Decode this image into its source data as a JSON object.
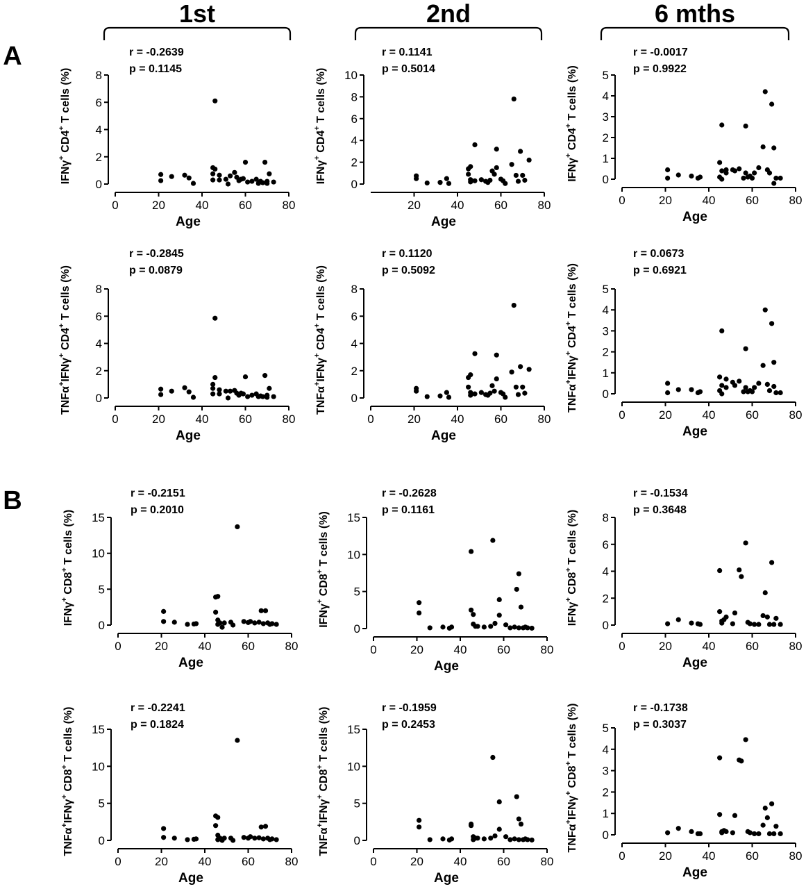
{
  "column_headers": [
    "1st",
    "2nd",
    "6 mths"
  ],
  "panel_letters": [
    "A",
    "B"
  ],
  "chart_data": [
    {
      "type": "scatter",
      "panel": "A",
      "column": "1st",
      "stat_r": "r = -0.2639",
      "stat_p": "p = 0.1145",
      "xlabel": "Age",
      "ylabel": "IFNγ+ CD4+ T cells (%)",
      "ylabel_parts": [
        [
          "IFNγ",
          ""
        ],
        [
          "+",
          "sup"
        ],
        [
          " CD4",
          ""
        ],
        [
          "+",
          "sup"
        ],
        [
          " T cells (%)",
          ""
        ]
      ],
      "xlim": [
        0,
        80
      ],
      "ylim": [
        0,
        8
      ],
      "xticks": [
        0,
        20,
        40,
        60,
        80
      ],
      "yticks": [
        0,
        2,
        4,
        6,
        8
      ],
      "x": [
        21,
        21,
        26,
        32,
        34,
        36,
        45,
        45,
        45,
        46,
        46,
        48,
        48,
        51,
        52,
        53,
        55,
        56,
        57,
        58,
        59,
        60,
        61,
        63,
        65,
        66,
        67,
        68,
        69,
        70,
        70,
        71,
        73
      ],
      "y": [
        0.7,
        0.25,
        0.55,
        0.65,
        0.45,
        0.05,
        1.2,
        0.75,
        0.3,
        6.1,
        1.1,
        0.65,
        0.3,
        0.35,
        0.0,
        0.6,
        0.85,
        0.5,
        0.25,
        0.35,
        0.4,
        1.6,
        0.15,
        0.2,
        0.35,
        0.05,
        0.2,
        0.1,
        1.6,
        0.2,
        0.05,
        0.75,
        0.15
      ]
    },
    {
      "type": "scatter",
      "panel": "A",
      "column": "2nd",
      "stat_r": "r = 0.1141",
      "stat_p": "p = 0.5014",
      "xlabel": "Age",
      "ylabel": "IFNγ+ CD4+ T cells (%)",
      "ylabel_parts": [
        [
          "IFNγ",
          ""
        ],
        [
          "+",
          "sup"
        ],
        [
          " CD4",
          ""
        ],
        [
          "+",
          "sup"
        ],
        [
          " T cells (%)",
          ""
        ]
      ],
      "xlim": [
        0,
        80
      ],
      "ylim": [
        0,
        10
      ],
      "xticks": [
        20,
        40,
        60,
        80
      ],
      "yticks": [
        0,
        2,
        4,
        6,
        8,
        10
      ],
      "x": [
        21,
        21,
        26,
        32,
        35,
        36,
        45,
        45,
        46,
        46,
        46,
        48,
        48,
        51,
        53,
        54,
        55,
        56,
        57,
        58,
        58,
        60,
        61,
        62,
        65,
        66,
        67,
        68,
        69,
        70,
        71,
        73
      ],
      "y": [
        0.75,
        0.5,
        0.1,
        0.15,
        0.5,
        0.05,
        1.4,
        0.9,
        1.6,
        0.4,
        0.2,
        3.6,
        0.3,
        0.4,
        0.25,
        0.15,
        0.35,
        1.2,
        0.9,
        3.2,
        1.5,
        0.45,
        0.3,
        0.05,
        1.8,
        7.8,
        0.8,
        0.25,
        3.0,
        0.8,
        0.35,
        2.2
      ]
    },
    {
      "type": "scatter",
      "panel": "A",
      "column": "6 mths",
      "stat_r": "r = -0.0017",
      "stat_p": "p = 0.9922",
      "xlabel": "Age",
      "ylabel": "IFNγ+ CD4+ T cells (%)",
      "ylabel_parts": [
        [
          "IFNγ",
          ""
        ],
        [
          "+",
          "sup"
        ],
        [
          " CD4",
          ""
        ],
        [
          "+",
          "sup"
        ],
        [
          " T cells (%)",
          ""
        ]
      ],
      "xlim": [
        0,
        80
      ],
      "ylim": [
        0,
        5
      ],
      "xticks": [
        0,
        20,
        40,
        60,
        80
      ],
      "yticks": [
        0,
        1,
        2,
        3,
        4,
        5
      ],
      "x": [
        21,
        21,
        26,
        32,
        35,
        36,
        45,
        45,
        46,
        46,
        46,
        48,
        48,
        51,
        52,
        54,
        56,
        57,
        57,
        58,
        59,
        60,
        61,
        63,
        65,
        66,
        67,
        68,
        69,
        70,
        70,
        71,
        73
      ],
      "y": [
        0.45,
        0.05,
        0.2,
        0.15,
        0.05,
        0.1,
        0.8,
        0.1,
        2.6,
        0.4,
        0.0,
        0.45,
        0.3,
        0.45,
        0.4,
        0.5,
        0.05,
        2.55,
        0.3,
        0.1,
        0.15,
        0.05,
        0.3,
        0.55,
        1.55,
        4.2,
        0.45,
        0.3,
        3.6,
        1.5,
        -0.2,
        0.05,
        0.05
      ]
    },
    {
      "type": "scatter",
      "panel": "A",
      "column": "1st",
      "stat_r": "r = -0.2845",
      "stat_p": "p = 0.0879",
      "xlabel": "Age",
      "ylabel": "TNFα+IFNγ+ CD4+ T cells (%)",
      "ylabel_parts": [
        [
          "TNFα",
          ""
        ],
        [
          "+",
          "sup"
        ],
        [
          "IFNγ",
          ""
        ],
        [
          "+",
          "sup"
        ],
        [
          " CD4",
          ""
        ],
        [
          "+",
          "sup"
        ],
        [
          " T cells (%)",
          ""
        ]
      ],
      "xlim": [
        0,
        80
      ],
      "ylim": [
        0,
        8
      ],
      "xticks": [
        0,
        20,
        40,
        60,
        80
      ],
      "yticks": [
        0,
        2,
        4,
        6,
        8
      ],
      "x": [
        21,
        21,
        26,
        32,
        34,
        36,
        45,
        45,
        45,
        46,
        46,
        48,
        48,
        51,
        52,
        53,
        55,
        56,
        57,
        58,
        59,
        60,
        61,
        63,
        65,
        66,
        67,
        68,
        69,
        70,
        70,
        71,
        73
      ],
      "y": [
        0.65,
        0.25,
        0.5,
        0.75,
        0.45,
        0.05,
        1.0,
        0.7,
        0.3,
        5.85,
        1.5,
        0.6,
        0.3,
        0.5,
        0.0,
        0.5,
        0.55,
        0.35,
        0.2,
        0.35,
        0.3,
        1.55,
        0.1,
        0.2,
        0.3,
        0.1,
        0.15,
        0.1,
        1.65,
        0.2,
        0.05,
        0.7,
        0.1
      ]
    },
    {
      "type": "scatter",
      "panel": "A",
      "column": "2nd",
      "stat_r": "r = 0.1120",
      "stat_p": "p = 0.5092",
      "xlabel": "Age",
      "ylabel": "TNFα+IFNγ+ CD4+ T cells (%)",
      "ylabel_parts": [
        [
          "TNFα",
          ""
        ],
        [
          "+",
          "sup"
        ],
        [
          "IFNγ",
          ""
        ],
        [
          "+",
          "sup"
        ],
        [
          " CD4",
          ""
        ],
        [
          "+",
          "sup"
        ],
        [
          " T cells (%)",
          ""
        ]
      ],
      "xlim": [
        0,
        80
      ],
      "ylim": [
        0,
        8
      ],
      "xticks": [
        0,
        20,
        40,
        60,
        80
      ],
      "yticks": [
        0,
        2,
        4,
        6,
        8
      ],
      "x": [
        21,
        21,
        26,
        32,
        35,
        36,
        45,
        45,
        46,
        46,
        46,
        48,
        48,
        51,
        53,
        54,
        55,
        56,
        57,
        58,
        58,
        60,
        61,
        62,
        65,
        66,
        67,
        68,
        69,
        70,
        71,
        73
      ],
      "y": [
        0.7,
        0.5,
        0.1,
        0.15,
        0.4,
        0.05,
        1.5,
        0.8,
        1.7,
        0.4,
        0.2,
        3.25,
        0.3,
        0.4,
        0.25,
        0.2,
        0.35,
        0.9,
        0.5,
        3.15,
        1.4,
        0.4,
        0.3,
        0.05,
        1.9,
        6.8,
        0.8,
        0.25,
        2.3,
        0.8,
        0.35,
        2.1
      ]
    },
    {
      "type": "scatter",
      "panel": "A",
      "column": "6 mths",
      "stat_r": "r = 0.0673",
      "stat_p": "p = 0.6921",
      "xlabel": "Age",
      "ylabel": "TNFα+IFNγ+ CD4+ T cells (%)",
      "ylabel_parts": [
        [
          "TNFα",
          ""
        ],
        [
          "+",
          "sup"
        ],
        [
          "IFNγ",
          ""
        ],
        [
          "+",
          "sup"
        ],
        [
          " CD4",
          ""
        ],
        [
          "+",
          "sup"
        ],
        [
          " T cells (%)",
          ""
        ]
      ],
      "xlim": [
        0,
        80
      ],
      "ylim": [
        0,
        5
      ],
      "xticks": [
        0,
        20,
        40,
        60,
        80
      ],
      "yticks": [
        0,
        1,
        2,
        3,
        4,
        5
      ],
      "x": [
        21,
        21,
        26,
        32,
        35,
        36,
        45,
        45,
        46,
        46,
        46,
        48,
        48,
        51,
        52,
        54,
        56,
        57,
        57,
        58,
        59,
        60,
        61,
        63,
        65,
        66,
        67,
        68,
        69,
        70,
        70,
        71,
        73
      ],
      "y": [
        0.5,
        0.05,
        0.2,
        0.2,
        0.05,
        0.1,
        0.8,
        0.15,
        3.0,
        0.4,
        0.0,
        0.7,
        0.3,
        0.55,
        0.4,
        0.6,
        0.1,
        2.15,
        0.3,
        0.1,
        0.15,
        0.1,
        0.3,
        0.5,
        1.35,
        4.0,
        0.45,
        0.15,
        3.35,
        1.5,
        0.35,
        0.05,
        0.05
      ]
    },
    {
      "type": "scatter",
      "panel": "B",
      "column": "1st",
      "stat_r": "r = -0.2151",
      "stat_p": "p = 0.2010",
      "xlabel": "Age",
      "ylabel": "IFNγ+ CD8+ T cells (%)",
      "ylabel_parts": [
        [
          "IFNγ",
          ""
        ],
        [
          "+",
          "sup"
        ],
        [
          " CD8",
          ""
        ],
        [
          "+",
          "sup"
        ],
        [
          " T cells (%)",
          ""
        ]
      ],
      "xlim": [
        0,
        80
      ],
      "ylim": [
        0,
        15
      ],
      "xticks": [
        0,
        20,
        40,
        60,
        80
      ],
      "yticks": [
        0,
        5,
        10,
        15
      ],
      "x": [
        21,
        21,
        26,
        32,
        35,
        36,
        45,
        45,
        46,
        46,
        46,
        47,
        48,
        49,
        52,
        53,
        55,
        58,
        60,
        61,
        63,
        65,
        66,
        67,
        68,
        69,
        70,
        71,
        73
      ],
      "y": [
        1.9,
        0.5,
        0.4,
        0.1,
        0.15,
        0.2,
        3.9,
        1.8,
        4.0,
        0.7,
        0.1,
        0.3,
        -0.3,
        0.3,
        0.4,
        0.0,
        13.7,
        0.5,
        0.35,
        0.5,
        0.3,
        0.4,
        2.0,
        0.2,
        2.0,
        0.3,
        0.1,
        0.2,
        0.1
      ]
    },
    {
      "type": "scatter",
      "panel": "B",
      "column": "2nd",
      "stat_r": "r = -0.2628",
      "stat_p": "p = 0.1161",
      "xlabel": "Age",
      "ylabel": "IFNγ+ CD8+ T cells (%)",
      "ylabel_parts": [
        [
          "IFNγ",
          ""
        ],
        [
          "+",
          "sup"
        ],
        [
          " CD8",
          ""
        ],
        [
          "+",
          "sup"
        ],
        [
          " T cells (%)",
          ""
        ]
      ],
      "xlim": [
        0,
        80
      ],
      "ylim": [
        0,
        15
      ],
      "xticks": [
        0,
        20,
        40,
        60,
        80
      ],
      "yticks": [
        0,
        5,
        10,
        15
      ],
      "x": [
        21,
        21,
        26,
        32,
        35,
        36,
        45,
        45,
        46,
        46,
        47,
        48,
        51,
        54,
        55,
        56,
        58,
        58,
        61,
        63,
        65,
        66,
        67,
        67,
        68,
        69,
        70,
        71,
        73
      ],
      "y": [
        3.5,
        2.1,
        0.1,
        0.2,
        0.05,
        0.2,
        10.4,
        2.5,
        1.9,
        0.6,
        0.3,
        0.3,
        0.2,
        0.3,
        11.9,
        0.7,
        3.9,
        1.8,
        0.5,
        0.1,
        0.2,
        5.3,
        7.4,
        0.1,
        2.9,
        0.1,
        0.2,
        0.1,
        0.05
      ]
    },
    {
      "type": "scatter",
      "panel": "B",
      "column": "6 mths",
      "stat_r": "r = -0.1534",
      "stat_p": "p = 0.3648",
      "xlabel": "Age",
      "ylabel": "IFNγ+ CD8+ T cells (%)",
      "ylabel_parts": [
        [
          "IFNγ",
          ""
        ],
        [
          "+",
          "sup"
        ],
        [
          " CD8",
          ""
        ],
        [
          "+",
          "sup"
        ],
        [
          " T cells (%)",
          ""
        ]
      ],
      "xlim": [
        0,
        80
      ],
      "ylim": [
        0,
        8
      ],
      "xticks": [
        0,
        20,
        40,
        60,
        80
      ],
      "yticks": [
        0,
        2,
        4,
        6,
        8
      ],
      "x": [
        21,
        26,
        32,
        35,
        36,
        45,
        45,
        46,
        46,
        47,
        48,
        51,
        52,
        54,
        55,
        57,
        58,
        59,
        61,
        63,
        65,
        66,
        67,
        68,
        69,
        70,
        71,
        73
      ],
      "y": [
        0.1,
        0.4,
        0.15,
        0.1,
        0.05,
        4.05,
        1.0,
        0.3,
        0.15,
        0.4,
        0.6,
        0.1,
        0.9,
        4.1,
        3.6,
        6.1,
        0.2,
        0.1,
        0.05,
        0.05,
        0.7,
        2.4,
        0.6,
        0.05,
        4.65,
        0.05,
        0.5,
        0.05
      ]
    },
    {
      "type": "scatter",
      "panel": "B",
      "column": "1st",
      "stat_r": "r = -0.2241",
      "stat_p": "p = 0.1824",
      "xlabel": "Age",
      "ylabel": "TNFα+IFNγ+ CD8+ T cells (%)",
      "ylabel_parts": [
        [
          "TNFα",
          ""
        ],
        [
          "+",
          "sup"
        ],
        [
          "IFNγ",
          ""
        ],
        [
          "+",
          "sup"
        ],
        [
          " CD8",
          ""
        ],
        [
          "+",
          "sup"
        ],
        [
          " T cells (%)",
          ""
        ]
      ],
      "xlim": [
        0,
        80
      ],
      "ylim": [
        0,
        15
      ],
      "xticks": [
        0,
        20,
        40,
        60,
        80
      ],
      "yticks": [
        0,
        5,
        10,
        15
      ],
      "x": [
        21,
        21,
        26,
        32,
        35,
        36,
        45,
        45,
        46,
        46,
        46,
        47,
        48,
        49,
        52,
        53,
        55,
        58,
        60,
        61,
        63,
        65,
        66,
        67,
        68,
        69,
        70,
        71,
        73
      ],
      "y": [
        1.6,
        0.4,
        0.3,
        0.1,
        0.15,
        0.2,
        3.3,
        2.0,
        3.1,
        0.7,
        0.1,
        0.3,
        0.0,
        0.3,
        0.3,
        0.0,
        13.5,
        0.4,
        0.3,
        0.5,
        0.3,
        0.35,
        1.8,
        0.2,
        1.9,
        0.3,
        0.1,
        0.2,
        0.1
      ]
    },
    {
      "type": "scatter",
      "panel": "B",
      "column": "2nd",
      "stat_r": "r = -0.1959",
      "stat_p": "p = 0.2453",
      "xlabel": "Age",
      "ylabel": "TNFα+IFNγ+ CD8+ T cells (%)",
      "ylabel_parts": [
        [
          "TNFα",
          ""
        ],
        [
          "+",
          "sup"
        ],
        [
          "IFNγ",
          ""
        ],
        [
          "+",
          "sup"
        ],
        [
          " CD8",
          ""
        ],
        [
          "+",
          "sup"
        ],
        [
          " T cells (%)",
          ""
        ]
      ],
      "xlim": [
        0,
        80
      ],
      "ylim": [
        0,
        15
      ],
      "xticks": [
        0,
        20,
        40,
        60,
        80
      ],
      "yticks": [
        0,
        5,
        10,
        15
      ],
      "x": [
        21,
        21,
        26,
        32,
        35,
        36,
        45,
        45,
        46,
        46,
        47,
        48,
        51,
        54,
        55,
        56,
        58,
        58,
        61,
        63,
        65,
        66,
        67,
        67,
        68,
        69,
        70,
        71,
        73
      ],
      "y": [
        2.7,
        1.8,
        0.1,
        0.2,
        0.05,
        0.2,
        2.2,
        2.0,
        0.5,
        0.1,
        0.3,
        0.3,
        0.2,
        0.3,
        11.2,
        0.6,
        5.2,
        1.5,
        0.5,
        0.1,
        0.2,
        5.9,
        2.9,
        0.1,
        2.2,
        0.1,
        0.2,
        0.1,
        0.05
      ]
    },
    {
      "type": "scatter",
      "panel": "B",
      "column": "6 mths",
      "stat_r": "r = -0.1738",
      "stat_p": "p = 0.3037",
      "xlabel": "Age",
      "ylabel": "TNFα+IFNγ+ CD8+ T cells (%)",
      "ylabel_parts": [
        [
          "TNFα",
          ""
        ],
        [
          "+",
          "sup"
        ],
        [
          "IFNγ",
          ""
        ],
        [
          "+",
          "sup"
        ],
        [
          " CD8",
          ""
        ],
        [
          "+",
          "sup"
        ],
        [
          " T cells (%)",
          ""
        ]
      ],
      "xlim": [
        0,
        80
      ],
      "ylim": [
        0,
        5
      ],
      "xticks": [
        0,
        20,
        40,
        60,
        80
      ],
      "yticks": [
        0,
        1,
        2,
        3,
        4,
        5
      ],
      "x": [
        21,
        26,
        32,
        35,
        36,
        45,
        45,
        46,
        46,
        47,
        48,
        51,
        52,
        54,
        55,
        57,
        58,
        59,
        61,
        63,
        65,
        66,
        67,
        68,
        69,
        70,
        71,
        73
      ],
      "y": [
        0.1,
        0.3,
        0.15,
        0.05,
        0.05,
        3.6,
        0.95,
        0.15,
        0.1,
        0.2,
        0.15,
        0.1,
        0.9,
        3.5,
        3.45,
        4.45,
        0.15,
        0.1,
        0.05,
        0.05,
        0.45,
        1.25,
        0.8,
        0.05,
        1.45,
        0.05,
        0.4,
        0.05
      ]
    }
  ]
}
